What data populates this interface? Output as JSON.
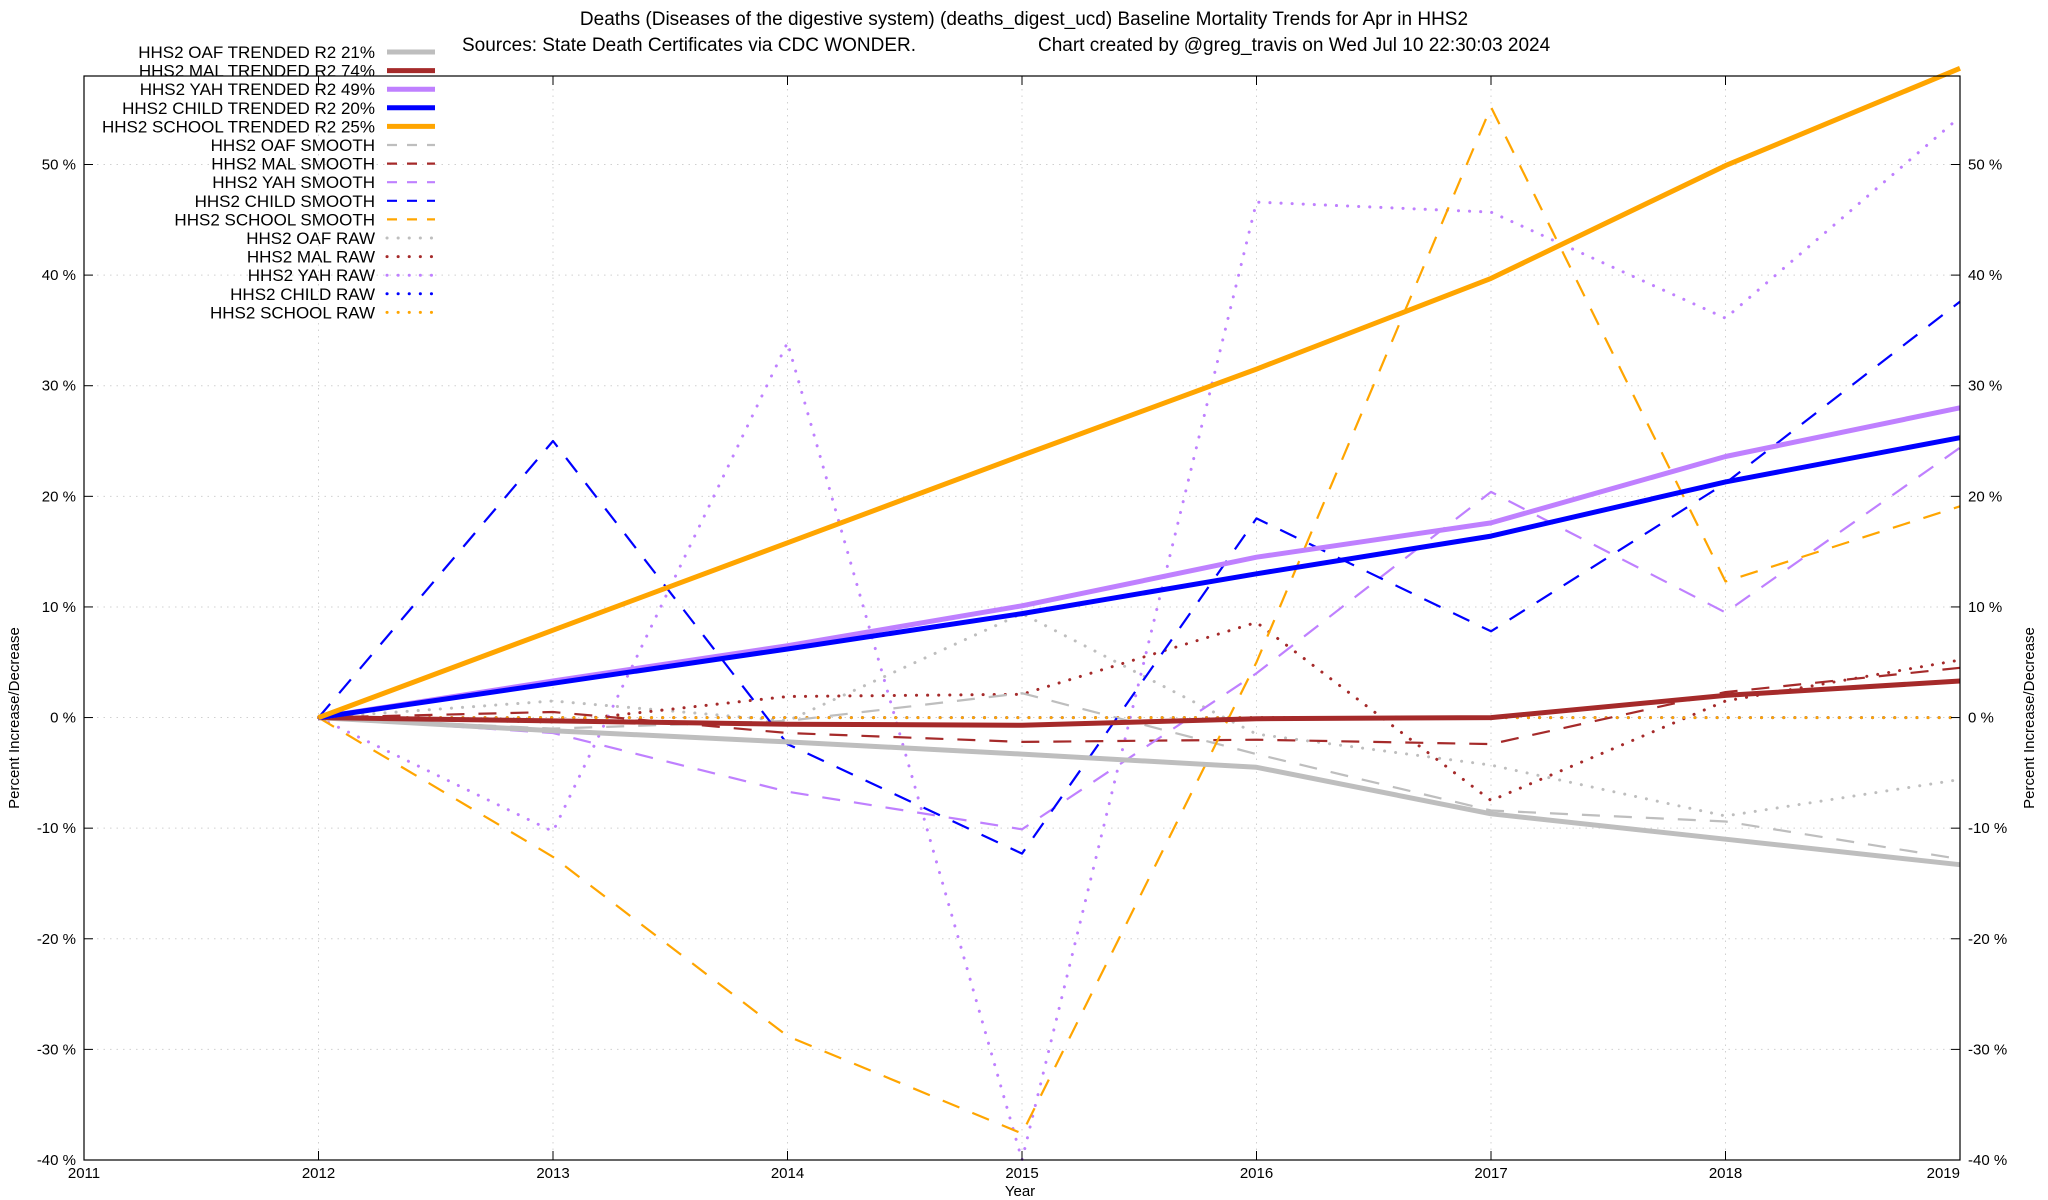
{
  "chart_data": {
    "type": "line",
    "title_line1": "Deaths (Diseases of the digestive system) (deaths_digest_ucd)  Baseline Mortality Trends for Apr in HHS2",
    "title_line2_left": "Sources: State Death Certificates via CDC WONDER.",
    "title_line2_right": "Chart created by @greg_travis on Wed Jul 10 22:30:03 2024",
    "xlabel": "Year",
    "ylabel_left": "Percent Increase/Decrease",
    "ylabel_right": "Percent Increase/Decrease",
    "xlim": [
      2011,
      2019
    ],
    "ylim": [
      -40,
      58
    ],
    "x_ticks": [
      "2011",
      "2012",
      "2013",
      "2014",
      "2015",
      "2016",
      "2017",
      "2018",
      "2019"
    ],
    "y_ticks": [
      {
        "value": -40,
        "label": "-40 %"
      },
      {
        "value": -30,
        "label": "-30 %"
      },
      {
        "value": -20,
        "label": "-20 %"
      },
      {
        "value": -10,
        "label": "-10 %"
      },
      {
        "value": 0,
        "label": "0 %"
      },
      {
        "value": 10,
        "label": "10 %"
      },
      {
        "value": 20,
        "label": "20 %"
      },
      {
        "value": 30,
        "label": "30 %"
      },
      {
        "value": 40,
        "label": "40 %"
      },
      {
        "value": 50,
        "label": "50 %"
      }
    ],
    "grid": true,
    "legend_position": "top-left",
    "x": [
      2012,
      2013,
      2014,
      2015,
      2016,
      2017,
      2018,
      2019
    ],
    "series": [
      {
        "name": "HHS2 OAF TRENDED R2  21%",
        "style": "trended",
        "color": "#bebebe",
        "values": [
          0,
          -1.2,
          -2.2,
          -3.3,
          -4.5,
          -8.7,
          -11.0,
          -13.3
        ]
      },
      {
        "name": "HHS2 MAL TRENDED R2  74%",
        "style": "trended",
        "color": "#a52a2a",
        "values": [
          0,
          -0.3,
          -0.6,
          -0.7,
          -0.1,
          0.0,
          2.0,
          3.3
        ]
      },
      {
        "name": "HHS2 YAH TRENDED R2  49%",
        "style": "trended",
        "color": "#bf80ff",
        "values": [
          0,
          3.3,
          6.5,
          10.1,
          14.5,
          17.6,
          23.6,
          28.0
        ]
      },
      {
        "name": "HHS2 CHILD TRENDED R2  20%",
        "style": "trended",
        "color": "#0000ff",
        "values": [
          0,
          3.1,
          6.2,
          9.4,
          13.0,
          16.4,
          21.3,
          25.3
        ]
      },
      {
        "name": "HHS2 SCHOOL TRENDED R2  25%",
        "style": "trended",
        "color": "#ffa500",
        "values": [
          0,
          7.9,
          15.8,
          23.7,
          31.5,
          39.7,
          49.9,
          58.7
        ]
      },
      {
        "name": "HHS2 OAF SMOOTH",
        "style": "smooth",
        "color": "#bebebe",
        "values": [
          0,
          -1.0,
          -0.3,
          2.2,
          -3.3,
          -8.4,
          -9.4,
          -12.8
        ]
      },
      {
        "name": "HHS2 MAL SMOOTH",
        "style": "smooth",
        "color": "#a52a2a",
        "values": [
          0,
          0.5,
          -1.4,
          -2.2,
          -2.0,
          -2.4,
          2.3,
          4.5
        ]
      },
      {
        "name": "HHS2 YAH SMOOTH",
        "style": "smooth",
        "color": "#bf80ff",
        "values": [
          0,
          -1.4,
          -6.7,
          -10.1,
          4.0,
          20.4,
          9.5,
          24.4
        ]
      },
      {
        "name": "HHS2 CHILD SMOOTH",
        "style": "smooth",
        "color": "#0000ff",
        "values": [
          0,
          25.0,
          -2.4,
          -12.3,
          18.0,
          7.8,
          21.2,
          37.6
        ]
      },
      {
        "name": "HHS2 SCHOOL SMOOTH",
        "style": "smooth",
        "color": "#ffa500",
        "values": [
          0,
          -12.6,
          -28.8,
          -37.6,
          5.0,
          55.2,
          12.3,
          19.1
        ]
      },
      {
        "name": "HHS2 OAF RAW",
        "style": "raw",
        "color": "#bebebe",
        "values": [
          0,
          1.5,
          -0.3,
          9.4,
          -1.5,
          -4.3,
          -8.9,
          -5.6
        ]
      },
      {
        "name": "HHS2 MAL RAW",
        "style": "raw",
        "color": "#a52a2a",
        "values": [
          0,
          -0.4,
          1.9,
          2.1,
          8.6,
          -7.5,
          1.5,
          5.2
        ]
      },
      {
        "name": "HHS2 YAH RAW",
        "style": "raw",
        "color": "#bf80ff",
        "values": [
          0,
          -10.3,
          33.9,
          -40.0,
          46.6,
          45.7,
          36.1,
          54.3
        ]
      },
      {
        "name": "HHS2 CHILD RAW",
        "style": "raw",
        "color": "#0000ff",
        "values": [
          0,
          0,
          0,
          0,
          0,
          0,
          0,
          0
        ]
      },
      {
        "name": "HHS2 SCHOOL RAW",
        "style": "raw",
        "color": "#ffa500",
        "values": [
          0,
          0,
          0,
          0,
          0,
          0,
          0,
          0
        ]
      }
    ]
  }
}
